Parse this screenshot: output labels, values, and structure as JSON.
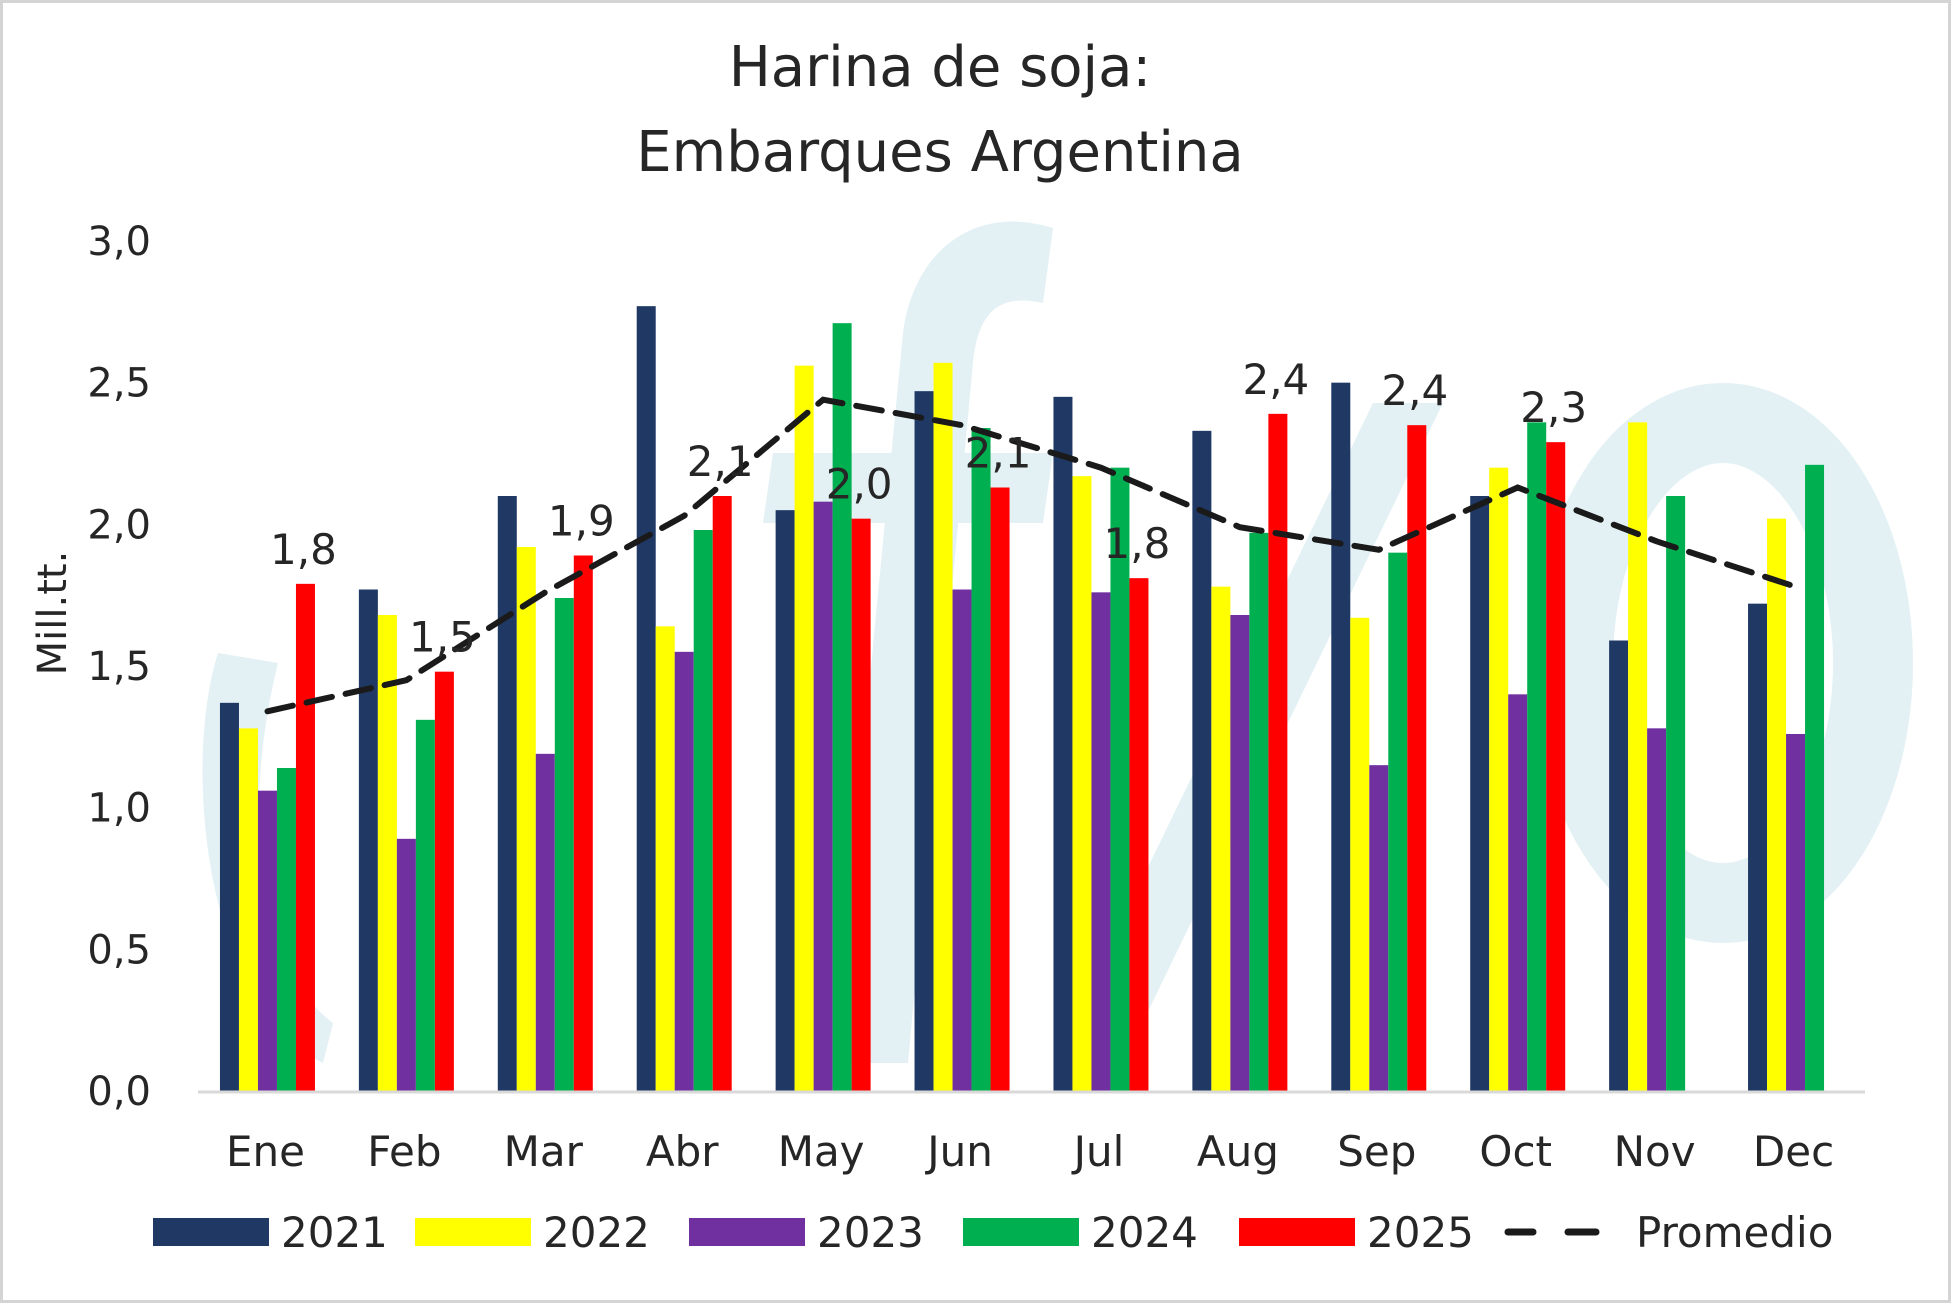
{
  "chart_data": {
    "type": "bar",
    "title": [
      "Harina de soja:",
      "Embarques Argentina"
    ],
    "ylabel": "Mill.tt.",
    "xlabel": "",
    "ylim": [
      0,
      3
    ],
    "yticks": [
      "0,0",
      "0,5",
      "1,0",
      "1,5",
      "2,0",
      "2,5",
      "3,0"
    ],
    "categories": [
      "Ene",
      "Feb",
      "Mar",
      "Abr",
      "May",
      "Jun",
      "Jul",
      "Aug",
      "Sep",
      "Oct",
      "Nov",
      "Dec"
    ],
    "series": [
      {
        "name": "2021",
        "color": "#1f3864",
        "values": [
          1.37,
          1.77,
          2.1,
          2.77,
          2.05,
          2.47,
          2.45,
          2.33,
          2.5,
          2.1,
          1.59,
          1.72
        ]
      },
      {
        "name": "2022",
        "color": "#ffff00",
        "values": [
          1.28,
          1.68,
          1.92,
          1.64,
          2.56,
          2.57,
          2.17,
          1.78,
          1.67,
          2.2,
          2.36,
          2.02
        ]
      },
      {
        "name": "2023",
        "color": "#7030a0",
        "values": [
          1.06,
          0.89,
          1.19,
          1.55,
          2.08,
          1.77,
          1.76,
          1.68,
          1.15,
          1.4,
          1.28,
          1.26
        ]
      },
      {
        "name": "2024",
        "color": "#00b050",
        "values": [
          1.14,
          1.31,
          1.74,
          1.98,
          2.71,
          2.34,
          2.2,
          1.97,
          1.9,
          2.36,
          2.1,
          2.21
        ]
      },
      {
        "name": "2025",
        "color": "#ff0000",
        "values": [
          1.79,
          1.48,
          1.89,
          2.1,
          2.02,
          2.13,
          1.81,
          2.39,
          2.35,
          2.29,
          null,
          null
        ]
      }
    ],
    "average": {
      "name": "Promedio",
      "color": "#1a1a1a",
      "style": "dashed",
      "values": [
        1.34,
        1.45,
        1.76,
        2.03,
        2.44,
        2.35,
        2.2,
        1.99,
        1.91,
        2.13,
        1.94,
        1.78
      ]
    },
    "data_labels": {
      "series": "2025",
      "labels": [
        "1,8",
        "1,5",
        "1,9",
        "2,1",
        "2,0",
        "2,1",
        "1,8",
        "2,4",
        "2,4",
        "2,3",
        "",
        ""
      ]
    },
    "legend": {
      "position": "bottom"
    },
    "grid": false,
    "watermark": "bcr"
  }
}
